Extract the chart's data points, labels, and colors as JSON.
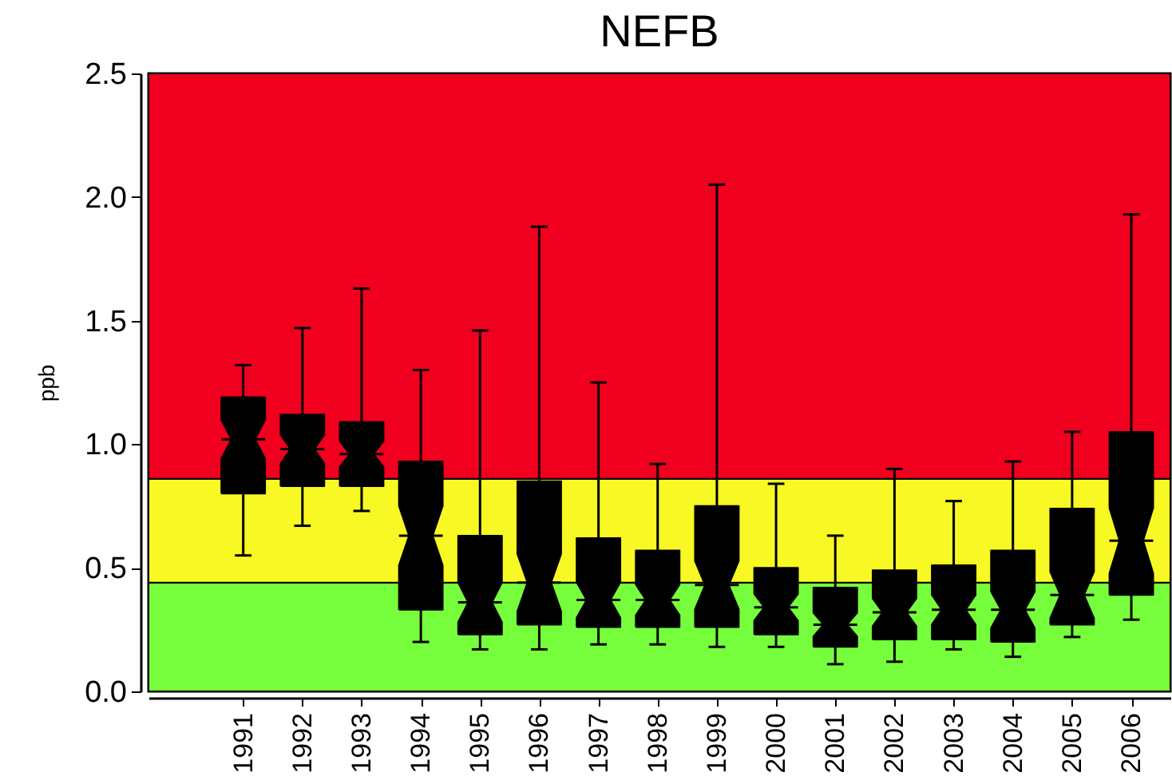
{
  "chart_data": {
    "type": "box",
    "title": "NEFB",
    "ylabel": "ppb",
    "categories": [
      "1991",
      "1992",
      "1993",
      "1994",
      "1995",
      "1996",
      "1997",
      "1998",
      "1999",
      "2000",
      "2001",
      "2002",
      "2003",
      "2004",
      "2005",
      "2006"
    ],
    "color": "#000000",
    "boxes": [
      {
        "low": 0.55,
        "q1": 0.8,
        "median": 1.02,
        "q3": 1.19,
        "high": 1.32
      },
      {
        "low": 0.67,
        "q1": 0.83,
        "median": 0.98,
        "q3": 1.12,
        "high": 1.47
      },
      {
        "low": 0.73,
        "q1": 0.83,
        "median": 0.96,
        "q3": 1.09,
        "high": 1.63
      },
      {
        "low": 0.2,
        "q1": 0.33,
        "median": 0.63,
        "q3": 0.93,
        "high": 1.3
      },
      {
        "low": 0.17,
        "q1": 0.23,
        "median": 0.36,
        "q3": 0.63,
        "high": 1.46
      },
      {
        "low": 0.17,
        "q1": 0.27,
        "median": 0.44,
        "q3": 0.85,
        "high": 1.88
      },
      {
        "low": 0.19,
        "q1": 0.26,
        "median": 0.37,
        "q3": 0.62,
        "high": 1.25
      },
      {
        "low": 0.19,
        "q1": 0.26,
        "median": 0.37,
        "q3": 0.57,
        "high": 0.92
      },
      {
        "low": 0.18,
        "q1": 0.26,
        "median": 0.43,
        "q3": 0.75,
        "high": 2.05
      },
      {
        "low": 0.18,
        "q1": 0.23,
        "median": 0.34,
        "q3": 0.5,
        "high": 0.84
      },
      {
        "low": 0.11,
        "q1": 0.18,
        "median": 0.27,
        "q3": 0.42,
        "high": 0.63
      },
      {
        "low": 0.12,
        "q1": 0.21,
        "median": 0.32,
        "q3": 0.49,
        "high": 0.9
      },
      {
        "low": 0.17,
        "q1": 0.21,
        "median": 0.33,
        "q3": 0.51,
        "high": 0.77
      },
      {
        "low": 0.14,
        "q1": 0.2,
        "median": 0.33,
        "q3": 0.57,
        "high": 0.93
      },
      {
        "low": 0.22,
        "q1": 0.27,
        "median": 0.39,
        "q3": 0.74,
        "high": 1.05
      },
      {
        "low": 0.29,
        "q1": 0.39,
        "median": 0.61,
        "q3": 1.05,
        "high": 1.93
      }
    ],
    "ylim": [
      0,
      2.5
    ],
    "yticks": [
      {
        "value": 0,
        "label": "0.0"
      },
      0.5,
      {
        "value": 1,
        "label": "1.0"
      },
      1.5,
      {
        "value": 2,
        "label": "2.0"
      },
      2.5
    ],
    "bands": [
      {
        "axis": "y",
        "from": 0,
        "to": 0.44,
        "color": "#76fe3c"
      },
      {
        "axis": "y",
        "from": 0.44,
        "to": 0.86,
        "color": "#f8f824"
      },
      {
        "axis": "y",
        "from": 0.86,
        "to": 2.5,
        "color": "#f0001e"
      }
    ]
  }
}
